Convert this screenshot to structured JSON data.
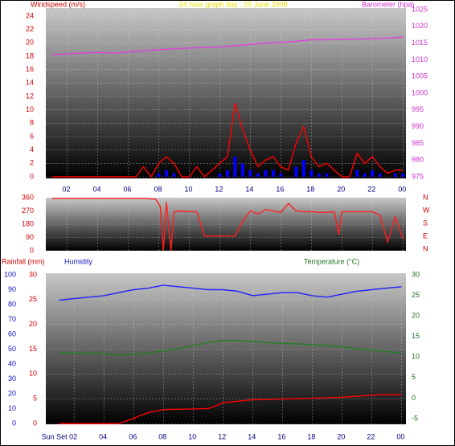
{
  "chart_data": [
    {
      "type": "line",
      "title": "24 hour graph day : 25 June 2008",
      "ylabel": "Windspeed (m/s)",
      "y2label": "Barometer (hpa)",
      "ycolor": "#d00000",
      "y2color": "#d030d0",
      "titlecolor": "#e8e000",
      "xlim": [
        0.6,
        24.2
      ],
      "xticks": [
        {
          "value": 2,
          "label": "02"
        },
        {
          "value": 4,
          "label": "04"
        },
        {
          "value": 6,
          "label": "06"
        },
        {
          "value": 8,
          "label": "08"
        },
        10,
        12,
        14,
        16,
        18,
        20,
        22,
        {
          "value": 24,
          "label": "00"
        }
      ],
      "ylim": [
        0,
        24
      ],
      "yticks": [
        0,
        2,
        4,
        6,
        8,
        10,
        12,
        14,
        16,
        18,
        20,
        22,
        24
      ],
      "y2lim": [
        975,
        1025
      ],
      "y2ticks": [
        975,
        980,
        985,
        990,
        995,
        1000,
        1005,
        1010,
        1015,
        1020,
        1025
      ],
      "grid": true,
      "series": [
        {
          "color": "#ff0000",
          "mark": "line",
          "axis": "y",
          "x": [
            1,
            1.5,
            2,
            2.5,
            3,
            3.5,
            4,
            4.5,
            5,
            5.5,
            6,
            6.5,
            7,
            7.5,
            8,
            8.5,
            9,
            9.5,
            10,
            10.5,
            11,
            11.5,
            12,
            12.5,
            13,
            13.5,
            14,
            14.5,
            15,
            15.5,
            16,
            16.5,
            17,
            17.5,
            18,
            18.5,
            19,
            19.5,
            20,
            20.5,
            21,
            21.5,
            22,
            22.5,
            23,
            23.5,
            24
          ],
          "values": [
            0,
            0,
            0,
            0,
            0,
            0,
            0,
            0,
            0,
            0,
            0,
            0,
            1.5,
            0,
            2,
            3,
            2,
            0,
            0,
            1.5,
            0,
            1,
            2,
            3,
            11,
            7,
            4,
            1.5,
            2.5,
            3,
            1.5,
            1,
            5,
            7.5,
            3,
            1.5,
            2,
            1,
            0,
            0,
            3.5,
            2,
            3,
            1.5,
            0.5,
            1,
            1
          ]
        },
        {
          "color": "#0000ff",
          "mark": "bar",
          "axis": "y",
          "x": [
            1,
            1.5,
            2,
            2.5,
            3,
            3.5,
            4,
            4.5,
            5,
            5.5,
            6,
            6.5,
            7,
            7.5,
            8,
            8.5,
            9,
            9.5,
            10,
            10.5,
            11,
            11.5,
            12,
            12.5,
            13,
            13.5,
            14,
            14.5,
            15,
            15.5,
            16,
            16.5,
            17,
            17.5,
            18,
            18.5,
            19,
            19.5,
            20,
            20.5,
            21,
            21.5,
            22,
            22.5,
            23,
            23.5,
            24
          ],
          "values": [
            0,
            0,
            0,
            0,
            0,
            0,
            0,
            0,
            0,
            0,
            0,
            0,
            0,
            0,
            0.5,
            1,
            0.5,
            0,
            0,
            0,
            0,
            0,
            0.5,
            1,
            3,
            2,
            1,
            0.5,
            1,
            1,
            0.5,
            0,
            1.5,
            2.5,
            1,
            0.5,
            0.5,
            0,
            0,
            0,
            1,
            0.5,
            1,
            0.5,
            0,
            0.5,
            0.5
          ]
        },
        {
          "color": "#e040e0",
          "mark": "line",
          "axis": "y2",
          "x": [
            1,
            2,
            3,
            4,
            5,
            6,
            7,
            8,
            9,
            10,
            11,
            12,
            13,
            14,
            15,
            16,
            17,
            18,
            19,
            20,
            21,
            22,
            23,
            24
          ],
          "values": [
            1011.5,
            1011.8,
            1012,
            1012.2,
            1012,
            1012.3,
            1012.7,
            1013,
            1013.3,
            1013.5,
            1013.7,
            1013.9,
            1014.2,
            1014.6,
            1015,
            1015.2,
            1015.5,
            1016,
            1016,
            1016.1,
            1016.2,
            1016.3,
            1016.5,
            1016.8
          ]
        }
      ]
    },
    {
      "type": "line",
      "ycolor": "#d00000",
      "y2color": "#d00000",
      "xlim": [
        0.6,
        24.2
      ],
      "xticks": [
        {
          "value": 2,
          "label": "02"
        },
        {
          "value": 4,
          "label": "04"
        },
        {
          "value": 6,
          "label": "06"
        },
        {
          "value": 8,
          "label": "08"
        },
        10,
        12,
        14,
        16,
        18,
        20,
        22,
        {
          "value": 24,
          "label": "00"
        }
      ],
      "ylim": [
        0,
        360
      ],
      "yticks": [
        0,
        90,
        180,
        270,
        360
      ],
      "y2lim": [
        0,
        360
      ],
      "y2ticks": [
        {
          "value": 0,
          "label": "N"
        },
        {
          "value": 90,
          "label": "E"
        },
        {
          "value": 180,
          "label": "S"
        },
        {
          "value": 270,
          "label": "W"
        },
        {
          "value": 360,
          "label": "N"
        }
      ],
      "grid": true,
      "series": [
        {
          "color": "#ff2020",
          "mark": "line",
          "axis": "y",
          "x": [
            1,
            2,
            3,
            4,
            5,
            6,
            7,
            7.8,
            8.1,
            8.3,
            8.5,
            8.8,
            9,
            9.5,
            10,
            10.5,
            11,
            12,
            13,
            13.5,
            14,
            14.5,
            15,
            15.5,
            16,
            16.5,
            17,
            17.5,
            18,
            18.5,
            19,
            19.5,
            19.8,
            20,
            21,
            22,
            22.5,
            23,
            23.5,
            24
          ],
          "values": [
            355,
            355,
            355,
            355,
            355,
            355,
            355,
            350,
            300,
            0,
            330,
            0,
            265,
            270,
            265,
            265,
            100,
            100,
            100,
            200,
            270,
            250,
            280,
            270,
            260,
            320,
            270,
            265,
            265,
            260,
            260,
            265,
            110,
            265,
            265,
            265,
            240,
            60,
            230,
            80
          ]
        }
      ]
    },
    {
      "type": "line",
      "ylabel": "Rainfall (mm)",
      "y3label": "Humidity",
      "y2label": "Temperature (°C)",
      "ycolor": "#d00000",
      "y2color": "#207020",
      "y3color": "#1010c0",
      "xlim": [
        0.1,
        24.3
      ],
      "xticks": [
        {
          "value": 2,
          "label": "Sun Set 02"
        },
        {
          "value": 4,
          "label": "04"
        },
        {
          "value": 6,
          "label": "06"
        },
        {
          "value": 8,
          "label": "08"
        },
        10,
        12,
        14,
        16,
        18,
        20,
        22,
        {
          "value": 24,
          "label": "00"
        }
      ],
      "ylim": [
        0,
        30
      ],
      "yticks": [
        0,
        5,
        10,
        15,
        20,
        25,
        30
      ],
      "y2lim": [
        -5,
        30
      ],
      "y2ticks": [
        -5,
        0,
        5,
        10,
        15,
        20,
        25,
        30
      ],
      "y3lim": [
        0,
        100
      ],
      "y3ticks": [
        0,
        10,
        20,
        30,
        40,
        50,
        60,
        70,
        80,
        90,
        100
      ],
      "grid": true,
      "series": [
        {
          "color": "#2020ff",
          "mark": "line",
          "axis": "y3",
          "x": [
            1,
            2,
            3,
            4,
            5,
            6,
            7,
            8,
            9,
            10,
            11,
            12,
            13,
            14,
            15,
            16,
            17,
            18,
            19,
            20,
            21,
            22,
            23,
            24
          ],
          "values": [
            83,
            84,
            85,
            86,
            88,
            90,
            91,
            93,
            92,
            91,
            90,
            90,
            89,
            86,
            87,
            88,
            88,
            86,
            85,
            87,
            89,
            90,
            91,
            92
          ]
        },
        {
          "color": "#208020",
          "mark": "line",
          "axis": "y2",
          "x": [
            1,
            2,
            3,
            4,
            5,
            6,
            7,
            8,
            9,
            10,
            11,
            12,
            13,
            14,
            15,
            16,
            17,
            18,
            19,
            20,
            21,
            22,
            23,
            24
          ],
          "values": [
            11,
            11,
            11,
            10.8,
            10.5,
            10.7,
            11,
            11.5,
            12,
            12.8,
            13.5,
            14,
            14,
            13.8,
            13.5,
            13.3,
            13.2,
            13,
            12.8,
            12.5,
            12,
            11.7,
            11.3,
            11
          ]
        },
        {
          "color": "#ff0000",
          "mark": "line",
          "axis": "y",
          "x": [
            1,
            5,
            5.5,
            6,
            6.5,
            7,
            8,
            11,
            11.5,
            12,
            13,
            14,
            17,
            20,
            22.5,
            24
          ],
          "values": [
            0,
            0,
            0.5,
            1,
            1.7,
            2.2,
            2.8,
            3,
            3.5,
            4.2,
            4.5,
            4.8,
            5,
            5.3,
            5.8,
            5.8
          ]
        }
      ]
    }
  ]
}
